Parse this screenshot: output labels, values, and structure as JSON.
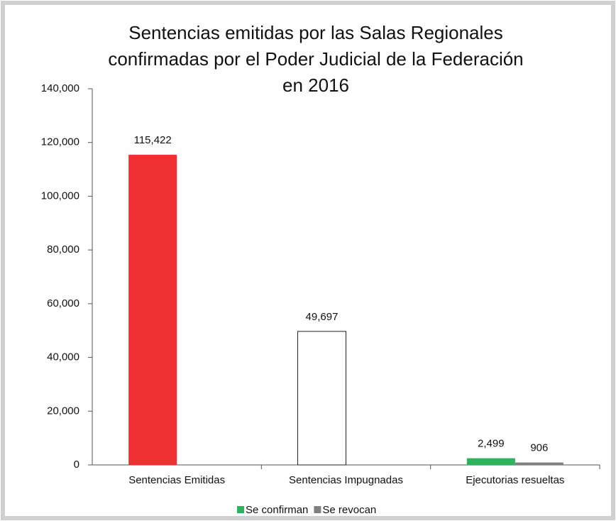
{
  "chart_data": {
    "type": "bar",
    "title": [
      "Sentencias emitidas por las Salas Regionales",
      "confirmadas por el Poder Judicial de la Federación",
      "en 2016"
    ],
    "categories": [
      "Sentencias Emitidas",
      "Sentencias Impugnadas",
      "Ejecutorias resueltas"
    ],
    "series": [
      {
        "name": "Se confirman",
        "color": "#2db35d",
        "colors": [
          "#ee3030",
          "#ffffff",
          "#2db35d"
        ],
        "values": [
          115422,
          49697,
          2499
        ],
        "value_labels": [
          "115,422",
          "49,697",
          "2,499"
        ]
      },
      {
        "name": "Se revocan",
        "color": "#808080",
        "values": [
          null,
          null,
          906
        ],
        "value_labels": [
          null,
          null,
          "906"
        ]
      }
    ],
    "ylim": [
      0,
      140000
    ],
    "yticks": [
      0,
      {
        "value": 20000,
        "label": "20,000"
      },
      {
        "value": 40000,
        "label": "40,000"
      },
      {
        "value": 60000,
        "label": "60,000"
      },
      {
        "value": 80000,
        "label": "80,000"
      },
      {
        "value": 100000,
        "label": "100,000"
      },
      {
        "value": 120000,
        "label": "120,000"
      },
      {
        "value": 140000,
        "label": "140,000"
      }
    ],
    "grid": false,
    "legend": "bottom"
  }
}
